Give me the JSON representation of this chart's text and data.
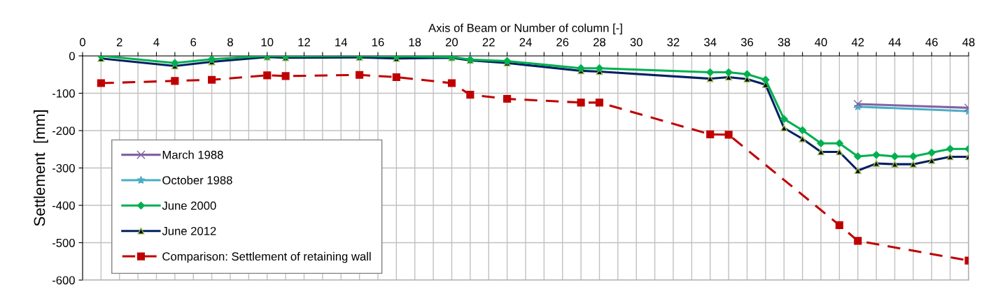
{
  "chart_data": {
    "type": "line",
    "xlabel": "Axis of Beam or Number of column [-]",
    "ylabel": "Settlement  [mm]",
    "xlim": [
      0,
      48
    ],
    "ylim": [
      -600,
      0
    ],
    "xticks": [
      0,
      {
        "value": 1,
        "label": null
      },
      2,
      {
        "value": 3,
        "label": null
      },
      4,
      {
        "value": 5,
        "label": null
      },
      6,
      {
        "value": 7,
        "label": null
      },
      8,
      {
        "value": 9,
        "label": null
      },
      10,
      {
        "value": 11,
        "label": null
      },
      12,
      {
        "value": 13,
        "label": null
      },
      14,
      {
        "value": 15,
        "label": null
      },
      16,
      {
        "value": 17,
        "label": null
      },
      18,
      {
        "value": 19,
        "label": null
      },
      20,
      {
        "value": 21,
        "label": null
      },
      22,
      {
        "value": 23,
        "label": null
      },
      24,
      {
        "value": 25,
        "label": null
      },
      26,
      {
        "value": 27,
        "label": null
      },
      28,
      {
        "value": 29,
        "label": null
      },
      30,
      {
        "value": 31,
        "label": null
      },
      32,
      {
        "value": 33,
        "label": null
      },
      34,
      {
        "value": 35,
        "label": null
      },
      36,
      {
        "value": 37,
        "label": null
      },
      38,
      {
        "value": 39,
        "label": null
      },
      40,
      {
        "value": 41,
        "label": null
      },
      42,
      {
        "value": 43,
        "label": null
      },
      44,
      {
        "value": 45,
        "label": null
      },
      46,
      {
        "value": 47,
        "label": null
      },
      48
    ],
    "yticks": [
      -600,
      -500,
      -400,
      -300,
      -200,
      -100,
      0
    ],
    "grid": true,
    "legend": "bottom left",
    "series": [
      {
        "name": "March 1988",
        "color": "#8064a2",
        "marker": "cross",
        "line_style": "solid",
        "x": [
          42,
          48
        ],
        "values": [
          -129,
          -139
        ]
      },
      {
        "name": "October 1988",
        "color": "#4bacc6",
        "marker": "star",
        "line_style": "solid",
        "x": [
          42,
          48
        ],
        "values": [
          -136,
          -148
        ]
      },
      {
        "name": "June 2000",
        "color": "#00b050",
        "marker": "diamond",
        "line_style": "solid",
        "x": [
          1,
          5,
          7,
          10,
          11,
          15,
          17,
          20,
          21,
          23,
          27,
          28,
          34,
          35,
          36,
          37,
          38,
          39,
          40,
          41,
          42,
          43,
          44,
          45,
          46,
          47,
          48
        ],
        "values": [
          0,
          -19,
          -9,
          0,
          -1,
          0,
          -1,
          -3,
          -10,
          -14,
          -33,
          -33,
          -44,
          -44,
          -49,
          -64,
          -169,
          -199,
          -234,
          -234,
          -269,
          -265,
          -269,
          -269,
          -259,
          -249,
          -249
        ]
      },
      {
        "name": "June 2012",
        "color": "#002060",
        "marker": "triangle",
        "line_style": "solid",
        "x": [
          1,
          5,
          7,
          10,
          11,
          15,
          17,
          20,
          21,
          23,
          27,
          28,
          34,
          35,
          36,
          37,
          38,
          39,
          40,
          41,
          42,
          43,
          44,
          45,
          46,
          47,
          48
        ],
        "values": [
          -7,
          -27,
          -16,
          -3,
          -5,
          -4,
          -7,
          -5,
          -12,
          -19,
          -40,
          -42,
          -61,
          -57,
          -62,
          -77,
          -193,
          -222,
          -257,
          -257,
          -307,
          -288,
          -290,
          -290,
          -280,
          -270,
          -270
        ]
      },
      {
        "name": "Comparison: Settlement of retaining wall",
        "color": "#c00000",
        "marker": "square",
        "line_style": "dashed",
        "x": [
          1,
          5,
          7,
          10,
          11,
          15,
          17,
          20,
          21,
          23,
          27,
          28,
          34,
          35,
          41,
          42,
          48
        ],
        "values": [
          -73,
          -67,
          -64,
          -52,
          -54,
          -51,
          -57,
          -73,
          -104,
          -115,
          -125,
          -125,
          -210,
          -211,
          -453,
          -495,
          -548
        ]
      }
    ]
  }
}
